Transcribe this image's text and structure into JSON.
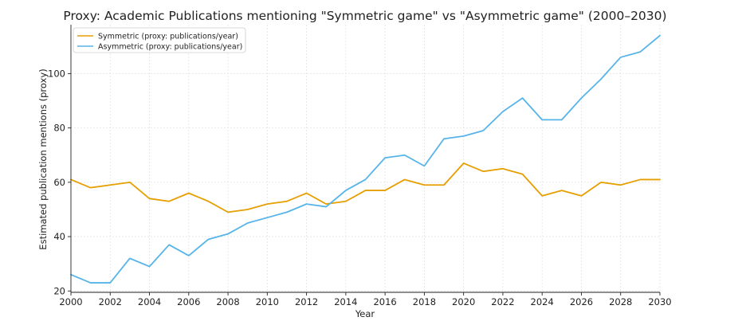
{
  "chart_data": {
    "type": "line",
    "title": "Proxy: Academic Publications mentioning \"Symmetric game\" vs \"Asymmetric game\" (2000–2030)",
    "xlabel": "Year",
    "ylabel": "Estimated publication mentions (proxy)",
    "xlim": [
      2000,
      2030
    ],
    "ylim": [
      19.5,
      118
    ],
    "x_ticks": [
      2000,
      2002,
      2004,
      2006,
      2008,
      2010,
      2012,
      2014,
      2016,
      2018,
      2020,
      2022,
      2024,
      2026,
      2028,
      2030
    ],
    "y_ticks": [
      20,
      40,
      60,
      80,
      100
    ],
    "grid": true,
    "legend_position": "upper-left",
    "x": [
      2000,
      2001,
      2002,
      2003,
      2004,
      2005,
      2006,
      2007,
      2008,
      2009,
      2010,
      2011,
      2012,
      2013,
      2014,
      2015,
      2016,
      2017,
      2018,
      2019,
      2020,
      2021,
      2022,
      2023,
      2024,
      2025,
      2026,
      2027,
      2028,
      2029,
      2030
    ],
    "series": [
      {
        "name": "Symmetric (proxy: publications/year)",
        "color": "#E69F00",
        "values": [
          61,
          58,
          59,
          60,
          54,
          53,
          56,
          53,
          49,
          50,
          52,
          53,
          56,
          52,
          53,
          57,
          57,
          61,
          59,
          59,
          67,
          64,
          65,
          63,
          55,
          57,
          55,
          60,
          59,
          61,
          61
        ]
      },
      {
        "name": "Asymmetric (proxy: publications/year)",
        "color": "#56B4E9",
        "values": [
          26,
          23,
          23,
          32,
          29,
          37,
          33,
          39,
          41,
          45,
          47,
          49,
          52,
          51,
          57,
          61,
          69,
          70,
          66,
          76,
          77,
          79,
          86,
          91,
          83,
          83,
          91,
          98,
          106,
          108,
          114
        ]
      }
    ]
  }
}
